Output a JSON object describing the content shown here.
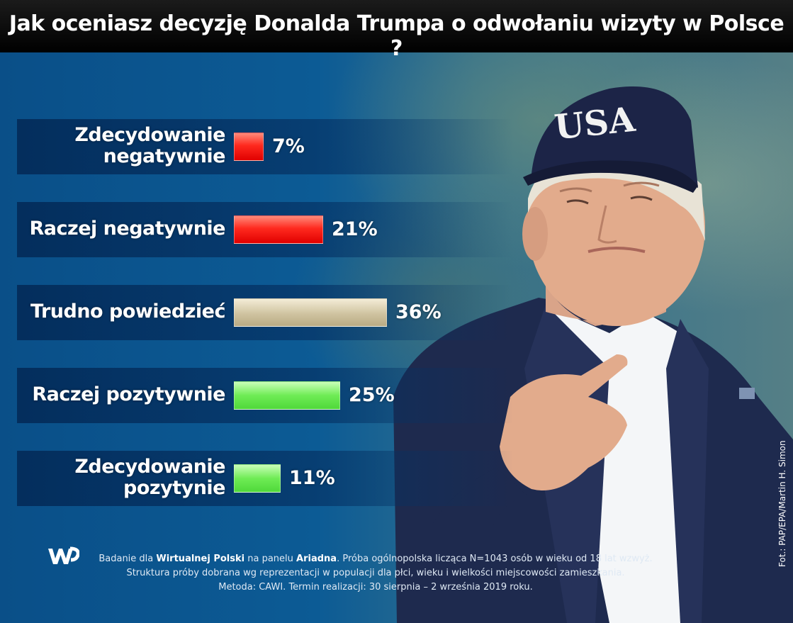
{
  "title": "Jak oceniasz decyzję Donalda Trumpa o odwołaniu wizyty w Polsce ?",
  "photo": {
    "cap_text": "USA"
  },
  "chart_data": {
    "type": "bar",
    "orientation": "horizontal",
    "categories": [
      [
        "Zdecydowanie",
        "negatywnie"
      ],
      [
        "Raczej negatywnie"
      ],
      [
        "Trudno powiedzieć"
      ],
      [
        "Raczej pozytywnie"
      ],
      [
        "Zdecydowanie",
        "pozytynie"
      ]
    ],
    "values": [
      7,
      21,
      36,
      25,
      11
    ],
    "value_labels": [
      "7%",
      "21%",
      "36%",
      "25%",
      "11%"
    ],
    "bar_colors": [
      "#ff2a1f",
      "#ff2a1f",
      "#cfc3a0",
      "#6fec55",
      "#6fec55"
    ],
    "value_unit": "%"
  },
  "footer": {
    "line1_pre": "Badanie dla ",
    "line1_b1": "Wirtualnej Polski",
    "line1_mid": " na panelu ",
    "line1_b2": "Ariadna",
    "line1_post": ". Próba ogólnopolska licząca N=1043 osób w wieku od 18 lat wzwyż.",
    "line2": "Struktura próby dobrana wg reprezentacji w populacji dla płci, wieku i wielkości miejscowości zamieszkania.",
    "line3": "Metoda: CAWI. Termin realizacji: 30 sierpnia – 2 września 2019 roku."
  },
  "credit": "Fot.: PAP/EPA/Martin H. Simon",
  "colors": {
    "negative": "#ff2a1f",
    "neutral": "#cfc3a0",
    "positive": "#6fec55",
    "background": "#0b4f86"
  }
}
